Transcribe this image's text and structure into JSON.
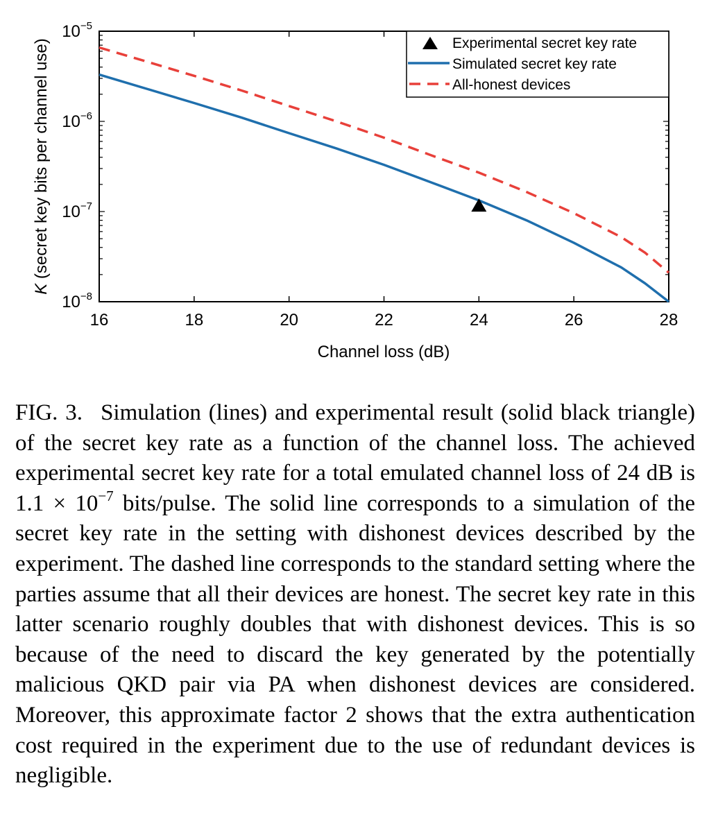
{
  "chart_data": {
    "type": "line",
    "title": "",
    "xlabel": "Channel loss (dB)",
    "ylabel": "K (secret key bits per channel use)",
    "ylabel_var": "K",
    "ylabel_rest": " (secret key bits per channel use)",
    "xlim": [
      16,
      28
    ],
    "ylim": [
      1e-08,
      1e-05
    ],
    "yscale": "log",
    "xticks": [
      16,
      18,
      20,
      22,
      24,
      26,
      28
    ],
    "yticks": [
      {
        "value": 1e-05,
        "base": "10",
        "exp": "−5"
      },
      {
        "value": 1e-06,
        "base": "10",
        "exp": "−6"
      },
      {
        "value": 1e-07,
        "base": "10",
        "exp": "−7"
      },
      {
        "value": 1e-08,
        "base": "10",
        "exp": "−8"
      }
    ],
    "grid": false,
    "legend_position": "top-right",
    "series": [
      {
        "name": "Experimental secret key rate",
        "style": "marker",
        "marker": "triangle",
        "color": "#000000",
        "x": [
          24
        ],
        "y": [
          1.15e-07
        ]
      },
      {
        "name": "Simulated secret key rate",
        "style": "solid",
        "color": "#1f6fad",
        "x": [
          16,
          17,
          18,
          19,
          20,
          21,
          22,
          23,
          24,
          25,
          26,
          27,
          27.5,
          28
        ],
        "y": [
          3.3e-06,
          2.3e-06,
          1.6e-06,
          1.1e-06,
          7.4e-07,
          5e-07,
          3.3e-07,
          2.1e-07,
          1.33e-07,
          8e-08,
          4.5e-08,
          2.4e-08,
          1.6e-08,
          1e-08
        ]
      },
      {
        "name": "All-honest devices",
        "style": "dashed",
        "color": "#e8403a",
        "x": [
          16,
          17,
          18,
          19,
          20,
          21,
          22,
          23,
          24,
          25,
          26,
          27,
          27.5,
          28
        ],
        "y": [
          6.6e-06,
          4.6e-06,
          3.2e-06,
          2.2e-06,
          1.48e-06,
          1e-06,
          6.6e-07,
          4.2e-07,
          2.7e-07,
          1.65e-07,
          9.6e-08,
          5.2e-08,
          3.5e-08,
          2.1e-08
        ]
      }
    ]
  },
  "caption": {
    "label": "FIG. 3.",
    "text_before_exp": "Simulation (lines) and experimental result (solid black triangle) of the secret key rate as a function of the channel loss. The achieved experimental secret key rate for a total emulated channel loss of 24 dB is 1.1 × 10",
    "exponent": "−7",
    "text_after_exp": " bits/pulse. The solid line corresponds to a simulation of the secret key rate in the setting with dishonest devices described by the experiment. The dashed line corresponds to the standard setting where the parties assume that all their devices are honest. The secret key rate in this latter scenario roughly doubles that with dishonest devices. This is so because of the need to discard the key generated by the potentially malicious QKD pair via PA when dishonest devices are considered. Moreover, this approximate factor 2 shows that the extra authentication cost required in the experiment due to the use of redundant devices is negligible."
  }
}
